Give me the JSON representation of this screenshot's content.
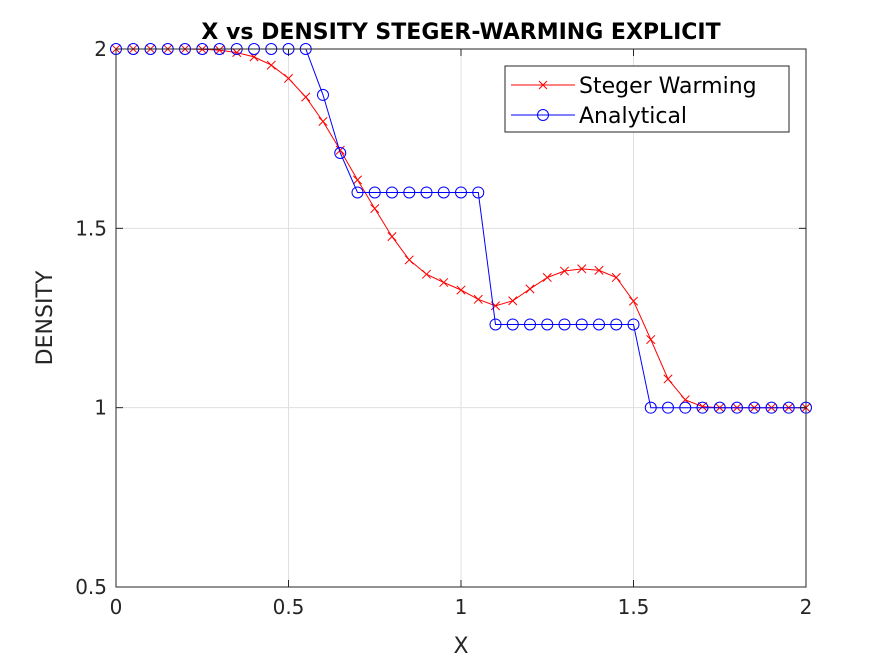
{
  "chart_data": {
    "type": "line",
    "title": "X vs DENSITY STEGER-WARMING EXPLICIT",
    "xlabel": "X",
    "ylabel": "DENSITY",
    "xlim": [
      0,
      2
    ],
    "ylim": [
      0.5,
      2
    ],
    "xticks": [
      0,
      0.5,
      1,
      1.5,
      2
    ],
    "yticks": [
      0.5,
      1,
      1.5,
      2
    ],
    "xtick_labels": [
      "0",
      "0.5",
      "1",
      "1.5",
      "2"
    ],
    "ytick_labels": [
      "0.5",
      "1",
      "1.5",
      "2"
    ],
    "grid": true,
    "legend_position": "top-right",
    "x": [
      0,
      0.05,
      0.1,
      0.15,
      0.2,
      0.25,
      0.3,
      0.35,
      0.4,
      0.45,
      0.5,
      0.55,
      0.6,
      0.65,
      0.7,
      0.75,
      0.8,
      0.85,
      0.9,
      0.95,
      1.0,
      1.05,
      1.1,
      1.15,
      1.2,
      1.25,
      1.3,
      1.35,
      1.4,
      1.45,
      1.5,
      1.55,
      1.6,
      1.65,
      1.7,
      1.75,
      1.8,
      1.85,
      1.9,
      1.95,
      2.0
    ],
    "series": [
      {
        "name": "Steger Warming",
        "color": "#ff0000",
        "marker": "x",
        "values": [
          2.0,
          2.0,
          2.0,
          2.0,
          2.0,
          1.999,
          1.997,
          1.99,
          1.978,
          1.955,
          1.918,
          1.866,
          1.798,
          1.718,
          1.635,
          1.555,
          1.477,
          1.412,
          1.372,
          1.349,
          1.328,
          1.302,
          1.284,
          1.298,
          1.331,
          1.363,
          1.381,
          1.387,
          1.383,
          1.363,
          1.297,
          1.19,
          1.08,
          1.022,
          1.003,
          1.0,
          1.0,
          1.0,
          1.0,
          1.0,
          1.0
        ]
      },
      {
        "name": "Analytical",
        "color": "#0000ff",
        "marker": "o",
        "values": [
          2.0,
          2.0,
          2.0,
          2.0,
          2.0,
          2.0,
          2.0,
          2.0,
          2.0,
          2.0,
          2.0,
          2.0,
          1.872,
          1.71,
          1.6,
          1.6,
          1.6,
          1.6,
          1.6,
          1.6,
          1.6,
          1.6,
          1.232,
          1.232,
          1.232,
          1.232,
          1.232,
          1.232,
          1.232,
          1.232,
          1.232,
          1.0,
          1.0,
          1.0,
          1.0,
          1.0,
          1.0,
          1.0,
          1.0,
          1.0,
          1.0
        ]
      }
    ]
  }
}
